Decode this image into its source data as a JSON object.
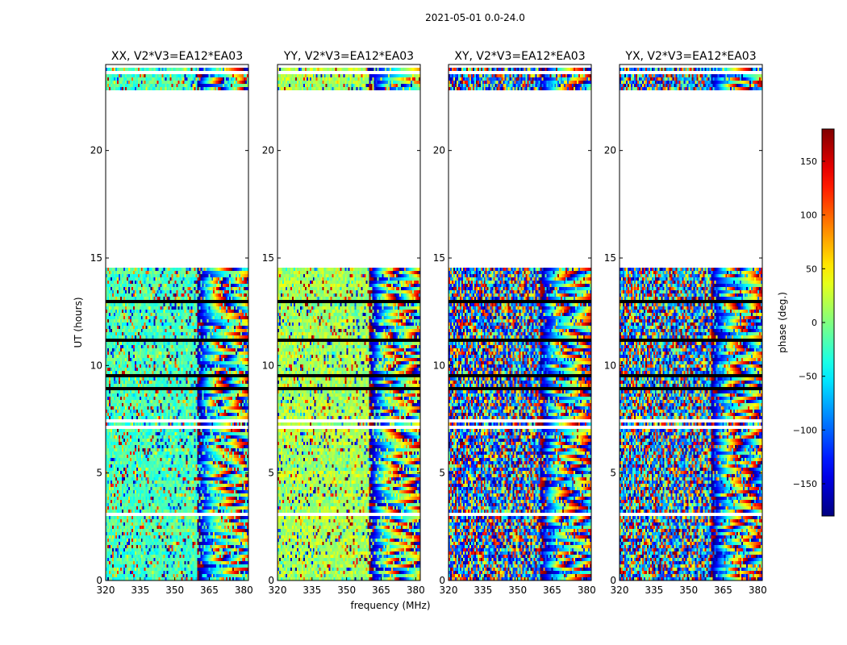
{
  "chart_data": {
    "type": "heatmap",
    "suptitle": "2021-05-01 0.0-24.0",
    "xlabel": "frequency (MHz)",
    "ylabel": "UT (hours)",
    "xlim": [
      320,
      382
    ],
    "ylim": [
      0,
      24
    ],
    "xticks": [
      320,
      335,
      350,
      365,
      380
    ],
    "yticks": [
      0,
      5,
      10,
      15,
      20
    ],
    "panels": [
      {
        "title": "XX, V2*V3=EA12*EA03",
        "pol": "XX",
        "phase_center_deg": -20,
        "coherence": 0.75
      },
      {
        "title": "YY, V2*V3=EA12*EA03",
        "pol": "YY",
        "phase_center_deg": 15,
        "coherence": 0.8
      },
      {
        "title": "XY, V2*V3=EA12*EA03",
        "pol": "XY",
        "phase_center_deg": -110,
        "coherence": 0.2
      },
      {
        "title": "YX, V2*V3=EA12*EA03",
        "pol": "YX",
        "phase_center_deg": -90,
        "coherence": 0.2
      }
    ],
    "data_gaps_hours": [
      [
        14.5,
        22.8
      ]
    ],
    "fringe_onset_MHz": 360,
    "colorbar": {
      "label": "phase (deg.)",
      "colormap": "jet",
      "vmin": -180,
      "vmax": 180,
      "ticks": [
        -150,
        -100,
        -50,
        0,
        50,
        100,
        150
      ],
      "tick_labels": [
        "−150",
        "−100",
        "−50",
        "0",
        "50",
        "100",
        "150"
      ]
    }
  }
}
